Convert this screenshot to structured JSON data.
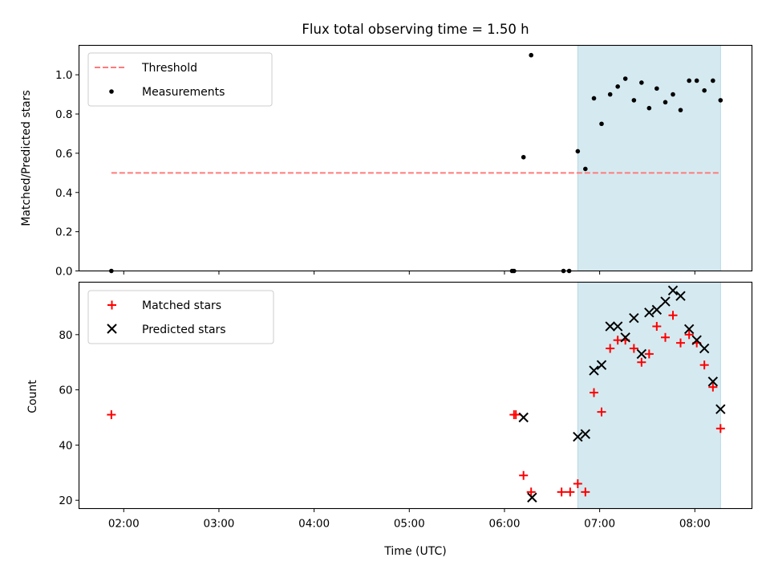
{
  "chart_data": [
    {
      "type": "scatter",
      "panel": "top",
      "title": "Flux total observing time = 1.50 h",
      "xlabel": "",
      "ylabel": "Matched/Predicted stars",
      "xlim": [
        1.53,
        8.6
      ],
      "ylim": [
        0,
        1.15
      ],
      "yticks": [
        0.0,
        0.2,
        0.4,
        0.6,
        0.8,
        1.0
      ],
      "ytick_labels": [
        "0.0",
        "0.2",
        "0.4",
        "0.6",
        "0.8",
        "1.0"
      ],
      "highlight_span": {
        "from": 6.77,
        "to": 8.27,
        "color": "#d5eaf0"
      },
      "legend": {
        "position": "top-left",
        "entries": [
          "Threshold",
          "Measurements"
        ]
      },
      "series": [
        {
          "name": "Threshold",
          "style": "dashed-line",
          "color": "#ff7b7b",
          "x": [
            1.87,
            8.27
          ],
          "y": [
            0.5,
            0.5
          ]
        },
        {
          "name": "Measurements",
          "style": "dot",
          "color": "#000000",
          "points": [
            [
              1.87,
              0.0
            ],
            [
              6.08,
              0.0
            ],
            [
              6.1,
              0.0
            ],
            [
              6.2,
              0.58
            ],
            [
              6.28,
              1.1
            ],
            [
              6.62,
              0.0
            ],
            [
              6.68,
              0.0
            ],
            [
              6.77,
              0.61
            ],
            [
              6.85,
              0.52
            ],
            [
              6.94,
              0.88
            ],
            [
              7.02,
              0.75
            ],
            [
              7.11,
              0.9
            ],
            [
              7.19,
              0.94
            ],
            [
              7.27,
              0.98
            ],
            [
              7.36,
              0.87
            ],
            [
              7.44,
              0.96
            ],
            [
              7.52,
              0.83
            ],
            [
              7.6,
              0.93
            ],
            [
              7.69,
              0.86
            ],
            [
              7.77,
              0.9
            ],
            [
              7.85,
              0.82
            ],
            [
              7.94,
              0.97
            ],
            [
              8.02,
              0.97
            ],
            [
              8.1,
              0.92
            ],
            [
              8.19,
              0.97
            ],
            [
              8.27,
              0.87
            ]
          ]
        }
      ]
    },
    {
      "type": "scatter",
      "panel": "bottom",
      "title": "",
      "xlabel": "Time (UTC)",
      "ylabel": "Count",
      "xlim": [
        1.53,
        8.6
      ],
      "ylim": [
        17,
        99
      ],
      "yticks": [
        20,
        40,
        60,
        80
      ],
      "ytick_labels": [
        "20",
        "40",
        "60",
        "80"
      ],
      "xticks": [
        2,
        3,
        4,
        5,
        6,
        7,
        8
      ],
      "xtick_labels": [
        "02:00",
        "03:00",
        "04:00",
        "05:00",
        "06:00",
        "07:00",
        "08:00"
      ],
      "highlight_span": {
        "from": 6.77,
        "to": 8.27,
        "color": "#d5eaf0"
      },
      "legend": {
        "position": "top-left",
        "entries": [
          "Matched stars",
          "Predicted stars"
        ]
      },
      "series": [
        {
          "name": "Matched stars",
          "marker": "plus",
          "color": "#ff0000",
          "points": [
            [
              1.87,
              51
            ],
            [
              6.1,
              51
            ],
            [
              6.12,
              51
            ],
            [
              6.2,
              29
            ],
            [
              6.28,
              23
            ],
            [
              6.6,
              23
            ],
            [
              6.69,
              23
            ],
            [
              6.77,
              26
            ],
            [
              6.85,
              23
            ],
            [
              6.94,
              59
            ],
            [
              7.02,
              52
            ],
            [
              7.11,
              75
            ],
            [
              7.19,
              78
            ],
            [
              7.27,
              78
            ],
            [
              7.36,
              75
            ],
            [
              7.44,
              70
            ],
            [
              7.52,
              73
            ],
            [
              7.6,
              83
            ],
            [
              7.69,
              79
            ],
            [
              7.77,
              87
            ],
            [
              7.85,
              77
            ],
            [
              7.94,
              80
            ],
            [
              8.02,
              77
            ],
            [
              8.1,
              69
            ],
            [
              8.19,
              61
            ],
            [
              8.27,
              46
            ]
          ]
        },
        {
          "name": "Predicted stars",
          "marker": "x",
          "color": "#000000",
          "points": [
            [
              6.2,
              50
            ],
            [
              6.29,
              21
            ],
            [
              6.77,
              43
            ],
            [
              6.85,
              44
            ],
            [
              6.94,
              67
            ],
            [
              7.02,
              69
            ],
            [
              7.11,
              83
            ],
            [
              7.19,
              83
            ],
            [
              7.27,
              79
            ],
            [
              7.36,
              86
            ],
            [
              7.44,
              73
            ],
            [
              7.52,
              88
            ],
            [
              7.6,
              89
            ],
            [
              7.69,
              92
            ],
            [
              7.77,
              96
            ],
            [
              7.85,
              94
            ],
            [
              7.94,
              82
            ],
            [
              8.02,
              78
            ],
            [
              8.1,
              75
            ],
            [
              8.19,
              63
            ],
            [
              8.27,
              53
            ]
          ]
        }
      ]
    }
  ]
}
